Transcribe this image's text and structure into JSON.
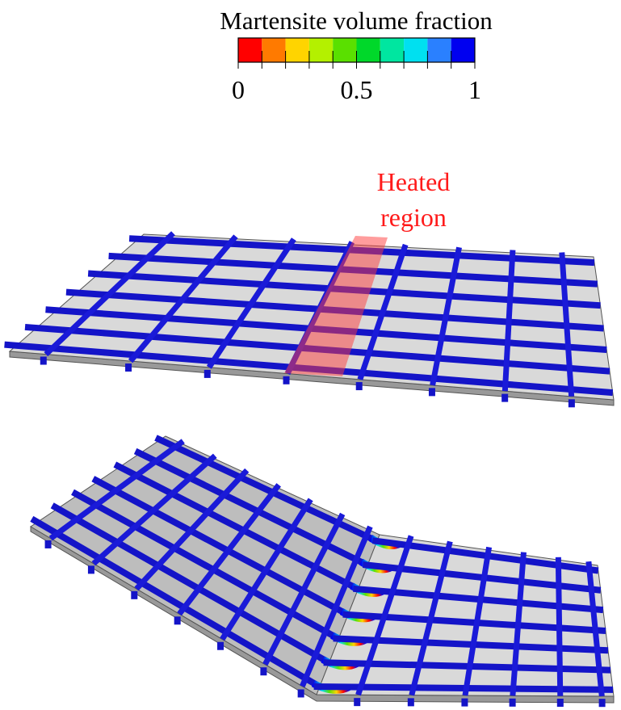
{
  "colorbar": {
    "title": "Martensite volume fraction",
    "range": [
      0,
      1
    ],
    "ticks": [
      0,
      0.5,
      1
    ],
    "colors": [
      "#ff0000",
      "#ff7a00",
      "#ffd400",
      "#b4f000",
      "#5ae000",
      "#00d82a",
      "#00e6a0",
      "#00e0f0",
      "#2a80ff",
      "#0000f0"
    ]
  },
  "annotation": {
    "lines": [
      "Heated",
      "region"
    ]
  }
}
